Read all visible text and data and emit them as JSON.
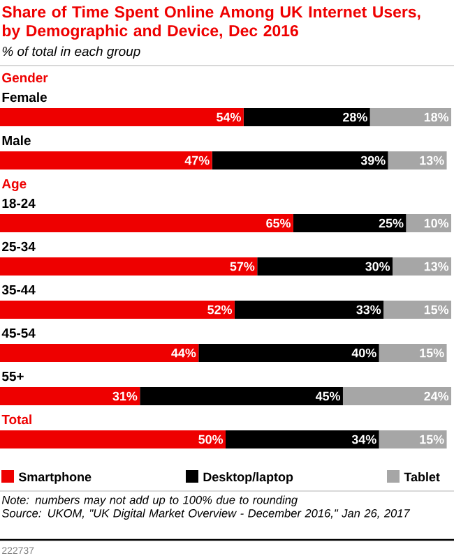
{
  "chart_data": {
    "type": "bar",
    "orientation": "horizontal",
    "stacked": true,
    "title": "Share of Time Spent Online Among UK Internet Users, by Demographic and Device, Dec 2016",
    "subtitle": "% of total in each group",
    "categories": [
      "Female",
      "Male",
      "18-24",
      "25-34",
      "35-44",
      "45-54",
      "55+",
      "Total"
    ],
    "series": [
      {
        "name": "Smartphone",
        "color": "#ee0000",
        "values": [
          54,
          47,
          65,
          57,
          52,
          44,
          31,
          50
        ],
        "value_labels": [
          "54%",
          "47%",
          "65%",
          "57%",
          "52%",
          "44%",
          "31%",
          "50%"
        ]
      },
      {
        "name": "Desktop/laptop",
        "color": "#000000",
        "values": [
          28,
          39,
          25,
          30,
          33,
          40,
          45,
          34
        ],
        "value_labels": [
          "28%",
          "39%",
          "25%",
          "30%",
          "33%",
          "40%",
          "45%",
          "34%"
        ]
      },
      {
        "name": "Tablet",
        "color": "#a6a6a6",
        "values": [
          18,
          13,
          10,
          13,
          15,
          15,
          24,
          15
        ],
        "value_labels": [
          "18%",
          "13%",
          "10%",
          "13%",
          "15%",
          "15%",
          "24%",
          "15%"
        ]
      }
    ],
    "legend": "bottom",
    "annotations": [
      "Gender",
      "Age",
      "Note: numbers may not add up to 100% due to rounding",
      "Source: UKOM, \"UK Digital Market Overview - December 2016,\" Jan 26, 2017",
      "222737"
    ]
  }
}
